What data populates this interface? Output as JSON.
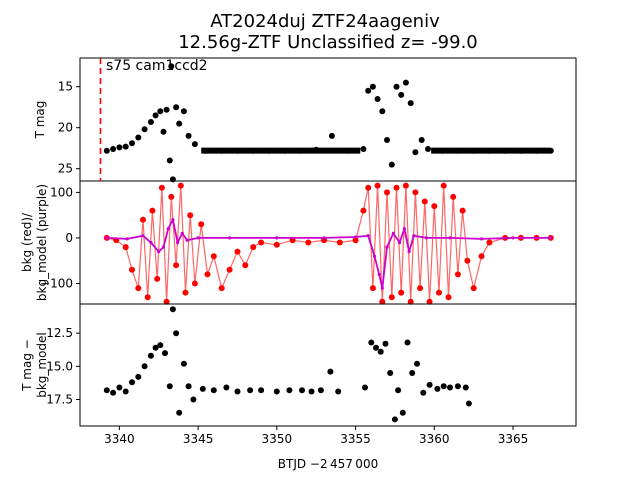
{
  "chart_data": {
    "type": "scatter",
    "title": "AT2024duj  ZTF24aageniv",
    "subtitle": "12.56g-ZTF Unclassified z= -99.0",
    "xlabel": "BTJD −2 457 000",
    "xlim": [
      3337.5,
      3369.0
    ],
    "xticks": [
      3340,
      3345,
      3350,
      3355,
      3360,
      3365
    ],
    "xtick_labels": [
      "3340",
      "3345",
      "3350",
      "3355",
      "3360",
      "3365"
    ],
    "annotation": "s75 cam1ccd2",
    "marker_line_x": 3338.8,
    "marker_line_color": "#ff0000",
    "panels": [
      {
        "name": "top",
        "ylabel": "T mag",
        "ylim": [
          11.5,
          26.5
        ],
        "inverted": true,
        "yticks": [
          15,
          20,
          25
        ],
        "ytick_labels": [
          "15",
          "20",
          "25"
        ],
        "series": [
          {
            "color": "#000000",
            "points": [
              [
                3339.2,
                22.8
              ],
              [
                3339.6,
                22.6
              ],
              [
                3340.0,
                22.4
              ],
              [
                3340.4,
                22.3
              ],
              [
                3340.8,
                21.9
              ],
              [
                3341.2,
                21.2
              ],
              [
                3341.6,
                20.2
              ],
              [
                3342.0,
                19.3
              ],
              [
                3342.3,
                18.5
              ],
              [
                3342.6,
                18.0
              ],
              [
                3342.8,
                20.5
              ],
              [
                3343.0,
                17.8
              ],
              [
                3343.2,
                24.0
              ],
              [
                3343.3,
                12.5
              ],
              [
                3343.4,
                26.3
              ],
              [
                3343.6,
                17.5
              ],
              [
                3343.8,
                19.5
              ],
              [
                3344.1,
                18.0
              ],
              [
                3344.4,
                21.0
              ],
              [
                3344.8,
                22.0
              ],
              [
                3345.5,
                22.8
              ],
              [
                3346.5,
                22.8
              ],
              [
                3347.5,
                22.8
              ],
              [
                3348.5,
                22.8
              ],
              [
                3349.5,
                22.8
              ],
              [
                3350.5,
                22.8
              ],
              [
                3351.5,
                22.8
              ],
              [
                3352.5,
                22.7
              ],
              [
                3353.5,
                21.0
              ],
              [
                3354.5,
                22.8
              ],
              [
                3355.5,
                22.6
              ],
              [
                3355.8,
                15.5
              ],
              [
                3356.1,
                15.0
              ],
              [
                3356.4,
                16.5
              ],
              [
                3356.7,
                18.0
              ],
              [
                3357.0,
                21.5
              ],
              [
                3357.3,
                24.5
              ],
              [
                3357.6,
                15.0
              ],
              [
                3357.9,
                16.0
              ],
              [
                3358.2,
                14.5
              ],
              [
                3358.5,
                17.0
              ],
              [
                3358.8,
                23.0
              ],
              [
                3359.2,
                21.5
              ],
              [
                3359.6,
                22.6
              ],
              [
                3360.5,
                22.8
              ],
              [
                3361.5,
                22.8
              ],
              [
                3362.5,
                22.8
              ],
              [
                3363.5,
                22.8
              ],
              [
                3364.5,
                22.8
              ],
              [
                3365.5,
                22.8
              ],
              [
                3366.5,
                22.8
              ],
              [
                3367.4,
                22.8
              ]
            ]
          }
        ]
      },
      {
        "name": "middle",
        "ylabel": "bkg (red)/\nbkg_model (purple)",
        "ylim": [
          -145,
          125
        ],
        "inverted": false,
        "yticks": [
          -100,
          0,
          100
        ],
        "ytick_labels": [
          "−100",
          "0",
          "100"
        ],
        "series": [
          {
            "color": "#ff0000",
            "points": [
              [
                3339.2,
                0
              ],
              [
                3339.8,
                -5
              ],
              [
                3340.4,
                -20
              ],
              [
                3340.8,
                -70
              ],
              [
                3341.2,
                -110
              ],
              [
                3341.5,
                40
              ],
              [
                3341.8,
                -130
              ],
              [
                3342.1,
                60
              ],
              [
                3342.4,
                -90
              ],
              [
                3342.7,
                110
              ],
              [
                3343.0,
                -140
              ],
              [
                3343.3,
                90
              ],
              [
                3343.6,
                -60
              ],
              [
                3343.9,
                115
              ],
              [
                3344.2,
                -120
              ],
              [
                3344.5,
                50
              ],
              [
                3344.8,
                -100
              ],
              [
                3345.2,
                30
              ],
              [
                3345.6,
                -80
              ],
              [
                3346.0,
                -40
              ],
              [
                3346.5,
                -110
              ],
              [
                3347.0,
                -70
              ],
              [
                3347.5,
                -30
              ],
              [
                3348.0,
                -60
              ],
              [
                3348.5,
                -20
              ],
              [
                3349.0,
                -10
              ],
              [
                3350.0,
                -15
              ],
              [
                3351.0,
                -5
              ],
              [
                3352.0,
                -10
              ],
              [
                3353.0,
                -5
              ],
              [
                3354.0,
                -10
              ],
              [
                3355.0,
                -5
              ],
              [
                3355.5,
                60
              ],
              [
                3355.8,
                110
              ],
              [
                3356.1,
                -110
              ],
              [
                3356.4,
                115
              ],
              [
                3356.7,
                -140
              ],
              [
                3357.0,
                100
              ],
              [
                3357.3,
                -130
              ],
              [
                3357.6,
                110
              ],
              [
                3357.9,
                -120
              ],
              [
                3358.2,
                115
              ],
              [
                3358.5,
                -140
              ],
              [
                3358.8,
                100
              ],
              [
                3359.1,
                -110
              ],
              [
                3359.4,
                80
              ],
              [
                3359.7,
                -140
              ],
              [
                3360.0,
                70
              ],
              [
                3360.3,
                -120
              ],
              [
                3360.6,
                115
              ],
              [
                3360.9,
                -130
              ],
              [
                3361.2,
                90
              ],
              [
                3361.5,
                -80
              ],
              [
                3361.8,
                60
              ],
              [
                3362.1,
                -50
              ],
              [
                3362.5,
                -110
              ],
              [
                3363.0,
                -40
              ],
              [
                3363.5,
                -10
              ],
              [
                3364.5,
                0
              ],
              [
                3365.5,
                0
              ],
              [
                3366.5,
                0
              ],
              [
                3367.4,
                0
              ]
            ]
          },
          {
            "color": "#cc00cc",
            "points": [
              [
                3339.2,
                0
              ],
              [
                3340.5,
                -2
              ],
              [
                3341.5,
                5
              ],
              [
                3342.0,
                -10
              ],
              [
                3342.5,
                -30
              ],
              [
                3342.8,
                -20
              ],
              [
                3343.1,
                20
              ],
              [
                3343.4,
                40
              ],
              [
                3343.7,
                -10
              ],
              [
                3344.0,
                10
              ],
              [
                3344.3,
                -5
              ],
              [
                3345.0,
                0
              ],
              [
                3347.0,
                0
              ],
              [
                3350.0,
                0
              ],
              [
                3353.0,
                0
              ],
              [
                3355.0,
                2
              ],
              [
                3355.8,
                5
              ],
              [
                3356.2,
                -40
              ],
              [
                3356.5,
                -80
              ],
              [
                3356.7,
                -110
              ],
              [
                3357.0,
                -20
              ],
              [
                3357.4,
                10
              ],
              [
                3357.8,
                -10
              ],
              [
                3358.1,
                20
              ],
              [
                3358.4,
                -30
              ],
              [
                3358.7,
                5
              ],
              [
                3359.5,
                0
              ],
              [
                3361.0,
                0
              ],
              [
                3363.0,
                -2
              ],
              [
                3365.0,
                0
              ],
              [
                3367.4,
                0
              ]
            ]
          }
        ]
      },
      {
        "name": "bottom",
        "ylabel": "T mag −\nbkg_model",
        "ylim": [
          10.3,
          19.5
        ],
        "inverted": true,
        "yticks": [
          12.5,
          15.0,
          17.5
        ],
        "ytick_labels": [
          "12.5",
          "15.0",
          "17.5"
        ],
        "series": [
          {
            "color": "#000000",
            "points": [
              [
                3339.2,
                16.8
              ],
              [
                3339.6,
                17.0
              ],
              [
                3340.0,
                16.6
              ],
              [
                3340.4,
                16.9
              ],
              [
                3340.8,
                16.2
              ],
              [
                3341.2,
                15.8
              ],
              [
                3341.6,
                15.0
              ],
              [
                3342.0,
                14.2
              ],
              [
                3342.3,
                13.6
              ],
              [
                3342.6,
                13.4
              ],
              [
                3342.9,
                14.0
              ],
              [
                3343.2,
                16.5
              ],
              [
                3343.4,
                10.7
              ],
              [
                3343.6,
                12.5
              ],
              [
                3343.8,
                18.5
              ],
              [
                3344.1,
                14.8
              ],
              [
                3344.4,
                16.5
              ],
              [
                3344.7,
                17.5
              ],
              [
                3345.3,
                16.7
              ],
              [
                3346.0,
                16.8
              ],
              [
                3346.8,
                16.6
              ],
              [
                3347.5,
                16.9
              ],
              [
                3348.3,
                16.8
              ],
              [
                3349.0,
                16.8
              ],
              [
                3350.0,
                16.9
              ],
              [
                3350.8,
                16.8
              ],
              [
                3351.6,
                16.8
              ],
              [
                3352.2,
                16.9
              ],
              [
                3352.8,
                16.8
              ],
              [
                3353.4,
                15.4
              ],
              [
                3353.9,
                16.9
              ],
              [
                3355.6,
                16.6
              ],
              [
                3356.0,
                13.2
              ],
              [
                3356.3,
                13.6
              ],
              [
                3356.6,
                13.9
              ],
              [
                3356.9,
                13.3
              ],
              [
                3357.2,
                15.5
              ],
              [
                3357.5,
                19.0
              ],
              [
                3357.7,
                16.8
              ],
              [
                3358.0,
                18.5
              ],
              [
                3358.3,
                13.2
              ],
              [
                3358.6,
                15.5
              ],
              [
                3358.9,
                14.8
              ],
              [
                3359.3,
                17.0
              ],
              [
                3359.7,
                16.4
              ],
              [
                3360.2,
                16.7
              ],
              [
                3360.6,
                16.5
              ],
              [
                3361.0,
                16.6
              ],
              [
                3361.5,
                16.5
              ],
              [
                3362.0,
                16.6
              ],
              [
                3362.2,
                17.8
              ]
            ]
          }
        ]
      }
    ]
  }
}
